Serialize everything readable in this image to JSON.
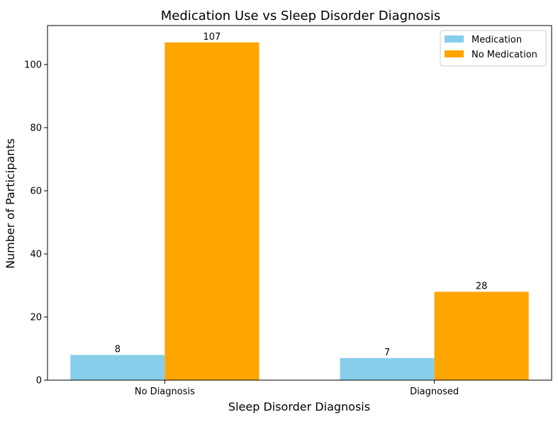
{
  "chart_data": {
    "type": "bar",
    "title": "Medication Use vs Sleep Disorder Diagnosis",
    "xlabel": "Sleep Disorder Diagnosis",
    "ylabel": "Number of Participants",
    "categories": [
      "No Diagnosis",
      "Diagnosed"
    ],
    "series": [
      {
        "name": "Medication",
        "values": [
          8,
          7
        ],
        "color": "#87CEEB"
      },
      {
        "name": "No Medication",
        "values": [
          107,
          28
        ],
        "color": "#FFA500"
      }
    ],
    "ylim": [
      0,
      112.35
    ],
    "yticks": [
      0,
      20,
      40,
      60,
      80,
      100
    ],
    "grid": false,
    "legend_position": "top-right",
    "bar_labels": true
  }
}
